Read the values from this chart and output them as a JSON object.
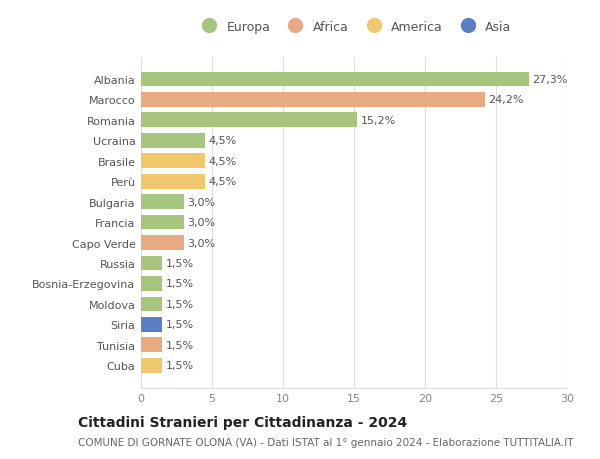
{
  "countries": [
    "Albania",
    "Marocco",
    "Romania",
    "Ucraina",
    "Brasile",
    "Perù",
    "Bulgaria",
    "Francia",
    "Capo Verde",
    "Russia",
    "Bosnia-Erzegovina",
    "Moldova",
    "Siria",
    "Tunisia",
    "Cuba"
  ],
  "values": [
    27.3,
    24.2,
    15.2,
    4.5,
    4.5,
    4.5,
    3.0,
    3.0,
    3.0,
    1.5,
    1.5,
    1.5,
    1.5,
    1.5,
    1.5
  ],
  "continents": [
    "Europa",
    "Africa",
    "Europa",
    "Europa",
    "America",
    "America",
    "Europa",
    "Europa",
    "Africa",
    "Europa",
    "Europa",
    "Europa",
    "Asia",
    "Africa",
    "America"
  ],
  "labels": [
    "27,3%",
    "24,2%",
    "15,2%",
    "4,5%",
    "4,5%",
    "4,5%",
    "3,0%",
    "3,0%",
    "3,0%",
    "1,5%",
    "1,5%",
    "1,5%",
    "1,5%",
    "1,5%",
    "1,5%"
  ],
  "colors": {
    "Europa": "#a8c580",
    "Africa": "#e8aa82",
    "America": "#f0c96e",
    "Asia": "#5b7fc4"
  },
  "title": "Cittadini Stranieri per Cittadinanza - 2024",
  "subtitle": "COMUNE DI GORNATE OLONA (VA) - Dati ISTAT al 1° gennaio 2024 - Elaborazione TUTTITALIA.IT",
  "xlim": [
    0,
    30
  ],
  "xticks": [
    0,
    5,
    10,
    15,
    20,
    25,
    30
  ],
  "background_color": "#ffffff",
  "grid_color": "#dddddd",
  "bar_height": 0.72,
  "title_fontsize": 10,
  "subtitle_fontsize": 7.5,
  "tick_fontsize": 8,
  "label_fontsize": 8,
  "legend_fontsize": 9
}
